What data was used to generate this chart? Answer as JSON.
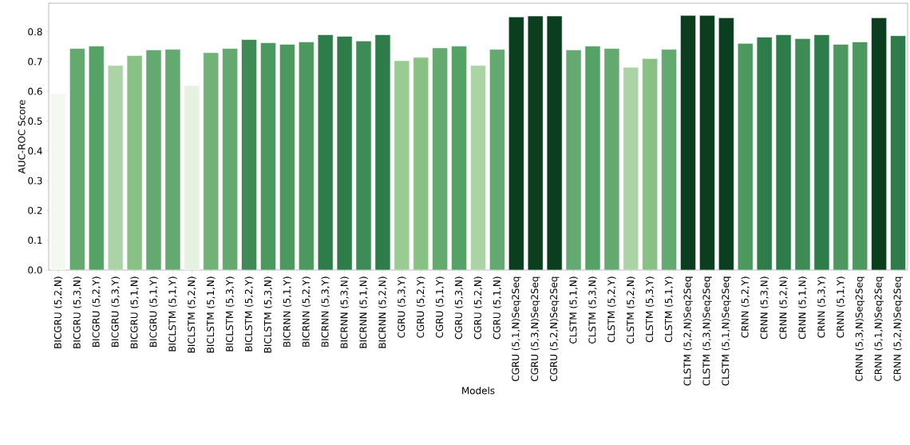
{
  "chart_data": {
    "type": "bar",
    "xlabel": "Models",
    "ylabel": "AUC-ROC Score",
    "categories": [
      "BICGRU (5,2,N)",
      "BICGRU (5,3,N)",
      "BICGRU (5,2,Y)",
      "BICGRU (5,3,Y)",
      "BICGRU (5,1,N)",
      "BICGRU (5,1,Y)",
      "BICLSTM (5,1,Y)",
      "BICLSTM (5,2,N)",
      "BICLSTM (5,1,N)",
      "BICLSTM (5,3,Y)",
      "BICLSTM (5,2,Y)",
      "BICLSTM (5,3,N)",
      "BICRNN (5,1,Y)",
      "BICRNN (5,2,Y)",
      "BICRNN (5,3,Y)",
      "BICRNN (5,3,N)",
      "BICRNN (5,1,N)",
      "BICRNN (5,2,N)",
      "CGRU (5,3,Y)",
      "CGRU (5,2,Y)",
      "CGRU (5,1,Y)",
      "CGRU (5,3,N)",
      "CGRU (5,2,N)",
      "CGRU (5,1,N)",
      "CGRU (5,1,N)Seq2Seq",
      "CGRU (5,3,N)Seq2Seq",
      "CGRU (5,2,N)Seq2Seq",
      "CLSTM (5,1,N)",
      "CLSTM (5,3,N)",
      "CLSTM (5,2,Y)",
      "CLSTM (5,2,N)",
      "CLSTM (5,3,Y)",
      "CLSTM (5,1,Y)",
      "CLSTM (5,2,N)Seq2Seq",
      "CLSTM (5,3,N)Seq2Seq",
      "CLSTM (5,1,N)Seq2Seq",
      "CRNN (5,2,Y)",
      "CRNN (5,3,N)",
      "CRNN (5,2,N)",
      "CRNN (5,1,N)",
      "CRNN (5,3,Y)",
      "CRNN (5,1,Y)",
      "CRNN (5,3,N)Seq2Seq",
      "CRNN (5,1,N)Seq2Seq",
      "CRNN (5,2,N)Seq2Seq"
    ],
    "values": [
      0.593,
      0.744,
      0.752,
      0.687,
      0.72,
      0.739,
      0.741,
      0.62,
      0.73,
      0.744,
      0.774,
      0.763,
      0.758,
      0.766,
      0.79,
      0.785,
      0.769,
      0.79,
      0.703,
      0.714,
      0.746,
      0.752,
      0.687,
      0.741,
      0.85,
      0.853,
      0.853,
      0.739,
      0.752,
      0.744,
      0.681,
      0.71,
      0.741,
      0.855,
      0.855,
      0.847,
      0.761,
      0.782,
      0.79,
      0.777,
      0.79,
      0.758,
      0.766,
      0.847,
      0.787
    ],
    "colors": [
      "#f3f9f1",
      "#64a96f",
      "#55a266",
      "#acd3a6",
      "#89c184",
      "#64a96f",
      "#64a96f",
      "#e5f2e0",
      "#73b277",
      "#64a96f",
      "#3e8b56",
      "#4b995e",
      "#4b995e",
      "#4b995e",
      "#2f7c4b",
      "#2f7c4b",
      "#3e8b56",
      "#2f7c4b",
      "#9acb93",
      "#89c184",
      "#64a96f",
      "#55a266",
      "#acd3a6",
      "#64a96f",
      "#0b3d1f",
      "#0b3d1f",
      "#0b3d1f",
      "#64a96f",
      "#55a266",
      "#64a96f",
      "#acd3a6",
      "#89c184",
      "#64a96f",
      "#0b3d1f",
      "#0b3d1f",
      "#0b3d1f",
      "#4b995e",
      "#2f7c4b",
      "#2f7c4b",
      "#3e8b56",
      "#2f7c4b",
      "#4b995e",
      "#4b995e",
      "#0b3d1f",
      "#2f7c4b"
    ],
    "ylim": [
      0,
      0.896
    ],
    "yticks": [
      {
        "value": 0,
        "label": "0.0"
      },
      0.1,
      0.2,
      0.3,
      0.4,
      0.5,
      0.6,
      0.7,
      0.8
    ]
  }
}
